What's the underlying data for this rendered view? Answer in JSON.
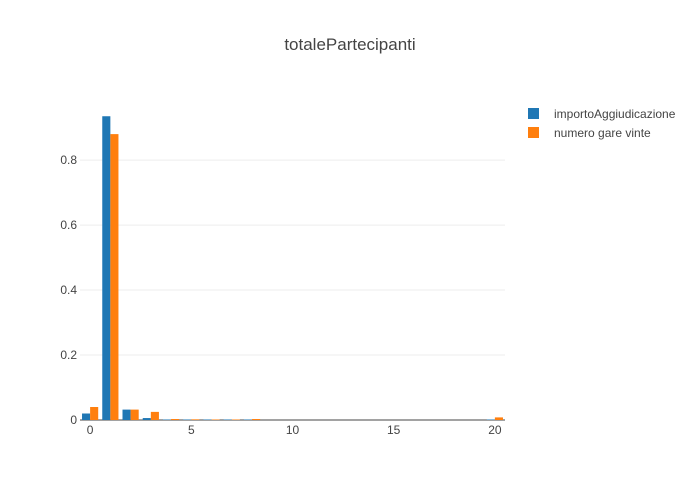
{
  "chart_data": {
    "type": "bar",
    "title": "totalePartecipanti",
    "xlabel": "",
    "ylabel": "",
    "xlim": [
      -0.5,
      20.5
    ],
    "ylim": [
      0,
      0.985
    ],
    "x_ticks": [
      0,
      5,
      10,
      15,
      20
    ],
    "y_ticks": [
      0,
      0.2,
      0.4,
      0.6,
      0.8
    ],
    "grid": "horizontal",
    "legend_position": "top-right",
    "series": [
      {
        "name": "importoAggiudicazione",
        "color": "#1f77b4",
        "x": [
          0,
          1,
          2,
          3,
          4,
          5,
          6,
          7,
          8,
          20
        ],
        "values": [
          0.02,
          0.935,
          0.032,
          0.006,
          0.001,
          0.001,
          0.001,
          0.001,
          0.001,
          0.001
        ]
      },
      {
        "name": "numero gare vinte",
        "color": "#ff7f0e",
        "x": [
          0,
          1,
          2,
          3,
          4,
          5,
          6,
          7,
          8,
          20
        ],
        "values": [
          0.04,
          0.88,
          0.032,
          0.025,
          0.003,
          0.002,
          0.001,
          0.001,
          0.003,
          0.008
        ]
      }
    ]
  }
}
